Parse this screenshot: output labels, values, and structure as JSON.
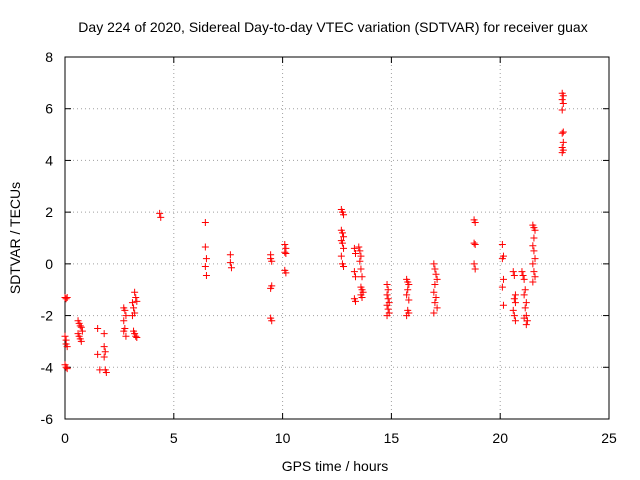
{
  "chart_data": {
    "type": "scatter",
    "title": "Day 224 of 2020, Sidereal Day-to-day VTEC variation (SDTVAR) for receiver guax",
    "xlabel": "GPS time / hours",
    "ylabel": "SDTVAR / TECUs",
    "xlim": [
      0,
      25
    ],
    "ylim": [
      -6,
      8
    ],
    "xticks": [
      0,
      5,
      10,
      15,
      20,
      25
    ],
    "xtick_labels": [
      "0",
      "5",
      "10",
      "15",
      "20",
      "25"
    ],
    "yticks": [
      -6,
      -4,
      -2,
      0,
      2,
      4,
      6,
      8
    ],
    "ytick_labels": [
      "-6",
      "-4",
      "-2",
      "0",
      "2",
      "4",
      "6",
      "8"
    ],
    "grid": true,
    "marker": "+",
    "color": "#ff0000",
    "series": [
      {
        "name": "SDTVAR",
        "points": [
          [
            0.0,
            -1.3
          ],
          [
            0.05,
            -1.35
          ],
          [
            0.1,
            -1.3
          ],
          [
            0.0,
            -2.8
          ],
          [
            0.05,
            -2.95
          ],
          [
            0.05,
            -3.1
          ],
          [
            0.1,
            -3.2
          ],
          [
            0.0,
            -3.9
          ],
          [
            0.05,
            -4.0
          ],
          [
            0.1,
            -4.05
          ],
          [
            0.6,
            -2.2
          ],
          [
            0.65,
            -2.3
          ],
          [
            0.7,
            -2.4
          ],
          [
            0.75,
            -2.45
          ],
          [
            0.6,
            -2.7
          ],
          [
            0.65,
            -2.8
          ],
          [
            0.7,
            -2.9
          ],
          [
            0.75,
            -3.0
          ],
          [
            0.8,
            -2.6
          ],
          [
            1.5,
            -2.5
          ],
          [
            1.5,
            -3.5
          ],
          [
            1.6,
            -4.1
          ],
          [
            1.8,
            -2.7
          ],
          [
            1.8,
            -3.2
          ],
          [
            1.85,
            -3.4
          ],
          [
            1.8,
            -3.6
          ],
          [
            1.85,
            -4.1
          ],
          [
            1.9,
            -4.2
          ],
          [
            2.7,
            -1.7
          ],
          [
            2.75,
            -1.8
          ],
          [
            2.8,
            -2.0
          ],
          [
            2.7,
            -2.2
          ],
          [
            2.75,
            -2.5
          ],
          [
            2.7,
            -2.6
          ],
          [
            2.8,
            -2.8
          ],
          [
            3.1,
            -1.5
          ],
          [
            3.15,
            -1.7
          ],
          [
            3.2,
            -1.9
          ],
          [
            3.1,
            -2.0
          ],
          [
            3.15,
            -2.6
          ],
          [
            3.2,
            -2.7
          ],
          [
            3.25,
            -2.8
          ],
          [
            3.3,
            -2.85
          ],
          [
            3.2,
            -1.1
          ],
          [
            3.25,
            -1.3
          ],
          [
            3.3,
            -1.45
          ],
          [
            4.35,
            1.95
          ],
          [
            4.4,
            1.8
          ],
          [
            6.45,
            1.6
          ],
          [
            6.45,
            0.65
          ],
          [
            6.5,
            0.2
          ],
          [
            6.45,
            -0.1
          ],
          [
            6.5,
            -0.45
          ],
          [
            7.6,
            0.35
          ],
          [
            7.6,
            0.05
          ],
          [
            7.65,
            -0.15
          ],
          [
            9.45,
            0.35
          ],
          [
            9.45,
            0.2
          ],
          [
            9.5,
            0.1
          ],
          [
            9.5,
            -0.85
          ],
          [
            9.45,
            -0.95
          ],
          [
            9.45,
            -2.1
          ],
          [
            9.5,
            -2.2
          ],
          [
            10.1,
            0.75
          ],
          [
            10.15,
            0.6
          ],
          [
            10.1,
            0.45
          ],
          [
            10.15,
            0.4
          ],
          [
            10.1,
            -0.25
          ],
          [
            10.15,
            -0.35
          ],
          [
            12.7,
            2.1
          ],
          [
            12.75,
            2.0
          ],
          [
            12.8,
            1.9
          ],
          [
            12.7,
            1.3
          ],
          [
            12.75,
            1.2
          ],
          [
            12.8,
            1.05
          ],
          [
            12.7,
            0.9
          ],
          [
            12.75,
            0.8
          ],
          [
            12.8,
            0.6
          ],
          [
            12.7,
            0.3
          ],
          [
            12.75,
            0.0
          ],
          [
            12.8,
            -0.1
          ],
          [
            13.3,
            0.6
          ],
          [
            13.35,
            0.4
          ],
          [
            13.3,
            -0.3
          ],
          [
            13.35,
            -0.5
          ],
          [
            13.3,
            -1.35
          ],
          [
            13.35,
            -1.45
          ],
          [
            13.5,
            0.65
          ],
          [
            13.55,
            0.5
          ],
          [
            13.6,
            0.3
          ],
          [
            13.55,
            0.1
          ],
          [
            13.6,
            -0.2
          ],
          [
            13.65,
            -0.5
          ],
          [
            13.6,
            -0.9
          ],
          [
            13.65,
            -1.0
          ],
          [
            13.7,
            -1.1
          ],
          [
            13.6,
            -1.2
          ],
          [
            13.65,
            -1.3
          ],
          [
            14.8,
            -0.8
          ],
          [
            14.85,
            -1.0
          ],
          [
            14.8,
            -1.2
          ],
          [
            14.85,
            -1.35
          ],
          [
            14.9,
            -1.5
          ],
          [
            14.8,
            -1.6
          ],
          [
            14.85,
            -1.75
          ],
          [
            14.9,
            -1.9
          ],
          [
            14.8,
            -2.0
          ],
          [
            15.7,
            -0.6
          ],
          [
            15.75,
            -0.7
          ],
          [
            15.8,
            -0.8
          ],
          [
            15.75,
            -1.0
          ],
          [
            15.7,
            -1.2
          ],
          [
            15.8,
            -1.4
          ],
          [
            15.75,
            -1.8
          ],
          [
            15.8,
            -1.9
          ],
          [
            15.7,
            -2.0
          ],
          [
            16.95,
            0.0
          ],
          [
            17.0,
            -0.2
          ],
          [
            17.05,
            -0.4
          ],
          [
            17.1,
            -0.6
          ],
          [
            17.0,
            -0.8
          ],
          [
            16.95,
            -1.1
          ],
          [
            17.05,
            -1.3
          ],
          [
            17.0,
            -1.5
          ],
          [
            17.1,
            -1.7
          ],
          [
            16.95,
            -1.9
          ],
          [
            18.8,
            1.7
          ],
          [
            18.85,
            1.6
          ],
          [
            18.8,
            0.8
          ],
          [
            18.85,
            0.75
          ],
          [
            18.8,
            0.0
          ],
          [
            18.85,
            -0.2
          ],
          [
            20.1,
            0.75
          ],
          [
            20.15,
            0.3
          ],
          [
            20.1,
            0.2
          ],
          [
            20.15,
            -0.6
          ],
          [
            20.1,
            -0.9
          ],
          [
            20.15,
            -1.6
          ],
          [
            20.6,
            -0.3
          ],
          [
            20.65,
            -0.45
          ],
          [
            20.7,
            -1.2
          ],
          [
            20.65,
            -1.35
          ],
          [
            20.7,
            -1.5
          ],
          [
            20.6,
            -1.8
          ],
          [
            20.65,
            -2.0
          ],
          [
            20.7,
            -2.2
          ],
          [
            21.0,
            -0.3
          ],
          [
            21.05,
            -0.45
          ],
          [
            21.1,
            -0.6
          ],
          [
            21.15,
            -1.0
          ],
          [
            21.1,
            -1.2
          ],
          [
            21.2,
            -1.5
          ],
          [
            21.15,
            -1.7
          ],
          [
            21.2,
            -2.0
          ],
          [
            21.1,
            -2.1
          ],
          [
            21.25,
            -2.2
          ],
          [
            21.2,
            -2.35
          ],
          [
            21.5,
            1.5
          ],
          [
            21.55,
            1.4
          ],
          [
            21.6,
            1.3
          ],
          [
            21.55,
            1.0
          ],
          [
            21.5,
            0.7
          ],
          [
            21.55,
            0.5
          ],
          [
            21.6,
            0.2
          ],
          [
            21.5,
            0.0
          ],
          [
            21.55,
            -0.3
          ],
          [
            21.6,
            -0.5
          ],
          [
            21.5,
            -0.7
          ],
          [
            22.85,
            6.6
          ],
          [
            22.9,
            6.5
          ],
          [
            22.85,
            6.35
          ],
          [
            22.9,
            6.2
          ],
          [
            22.85,
            5.95
          ],
          [
            22.9,
            5.1
          ],
          [
            22.85,
            5.05
          ],
          [
            22.9,
            4.7
          ],
          [
            22.85,
            4.5
          ],
          [
            22.9,
            4.4
          ],
          [
            22.85,
            4.3
          ]
        ]
      }
    ]
  }
}
